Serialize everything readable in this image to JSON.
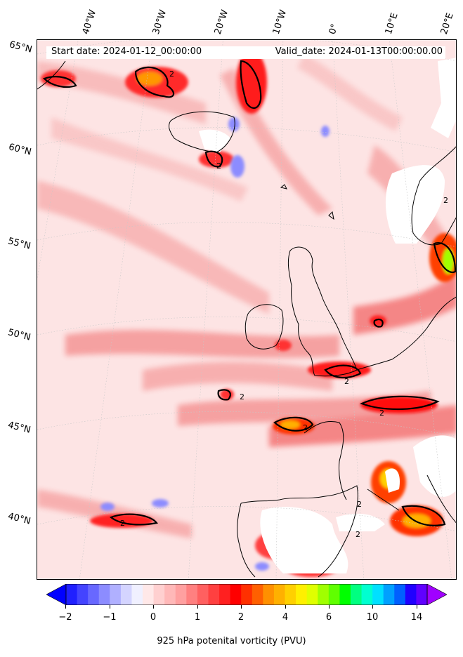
{
  "map": {
    "start_date": "Start date: 2024-01-12_00:00:00",
    "valid_date": "Valid_date: 2024-01-13T00:00:00.00",
    "lon_labels": [
      "40°W",
      "30°W",
      "20°W",
      "10°W",
      "0°",
      "10°E",
      "20°E"
    ],
    "lat_labels": [
      "65°N",
      "60°N",
      "55°N",
      "50°N",
      "45°N",
      "40°N"
    ],
    "contour_label": "2",
    "colorbar": {
      "label": "925 hPa potenital vorticity (PVU)",
      "ticks": [
        "−2",
        "−1",
        "0",
        "1",
        "2",
        "4",
        "6",
        "10",
        "14"
      ],
      "colors": [
        "#0000ff",
        "#2020ff",
        "#4444ff",
        "#6868ff",
        "#8c8cff",
        "#b0b0ff",
        "#d4d4ff",
        "#f0f0ff",
        "#ffe8e8",
        "#ffd0d0",
        "#ffb8b8",
        "#ffa0a0",
        "#ff8080",
        "#ff6060",
        "#ff4040",
        "#ff2020",
        "#ff0000",
        "#ff3000",
        "#ff6000",
        "#ff9000",
        "#ffb000",
        "#ffd000",
        "#fff000",
        "#e0ff00",
        "#a0ff00",
        "#60ff00",
        "#00ff00",
        "#00ff80",
        "#00ffd0",
        "#00e0ff",
        "#00a0ff",
        "#0060ff",
        "#2000ff",
        "#6000ff",
        "#a000ff"
      ]
    }
  }
}
